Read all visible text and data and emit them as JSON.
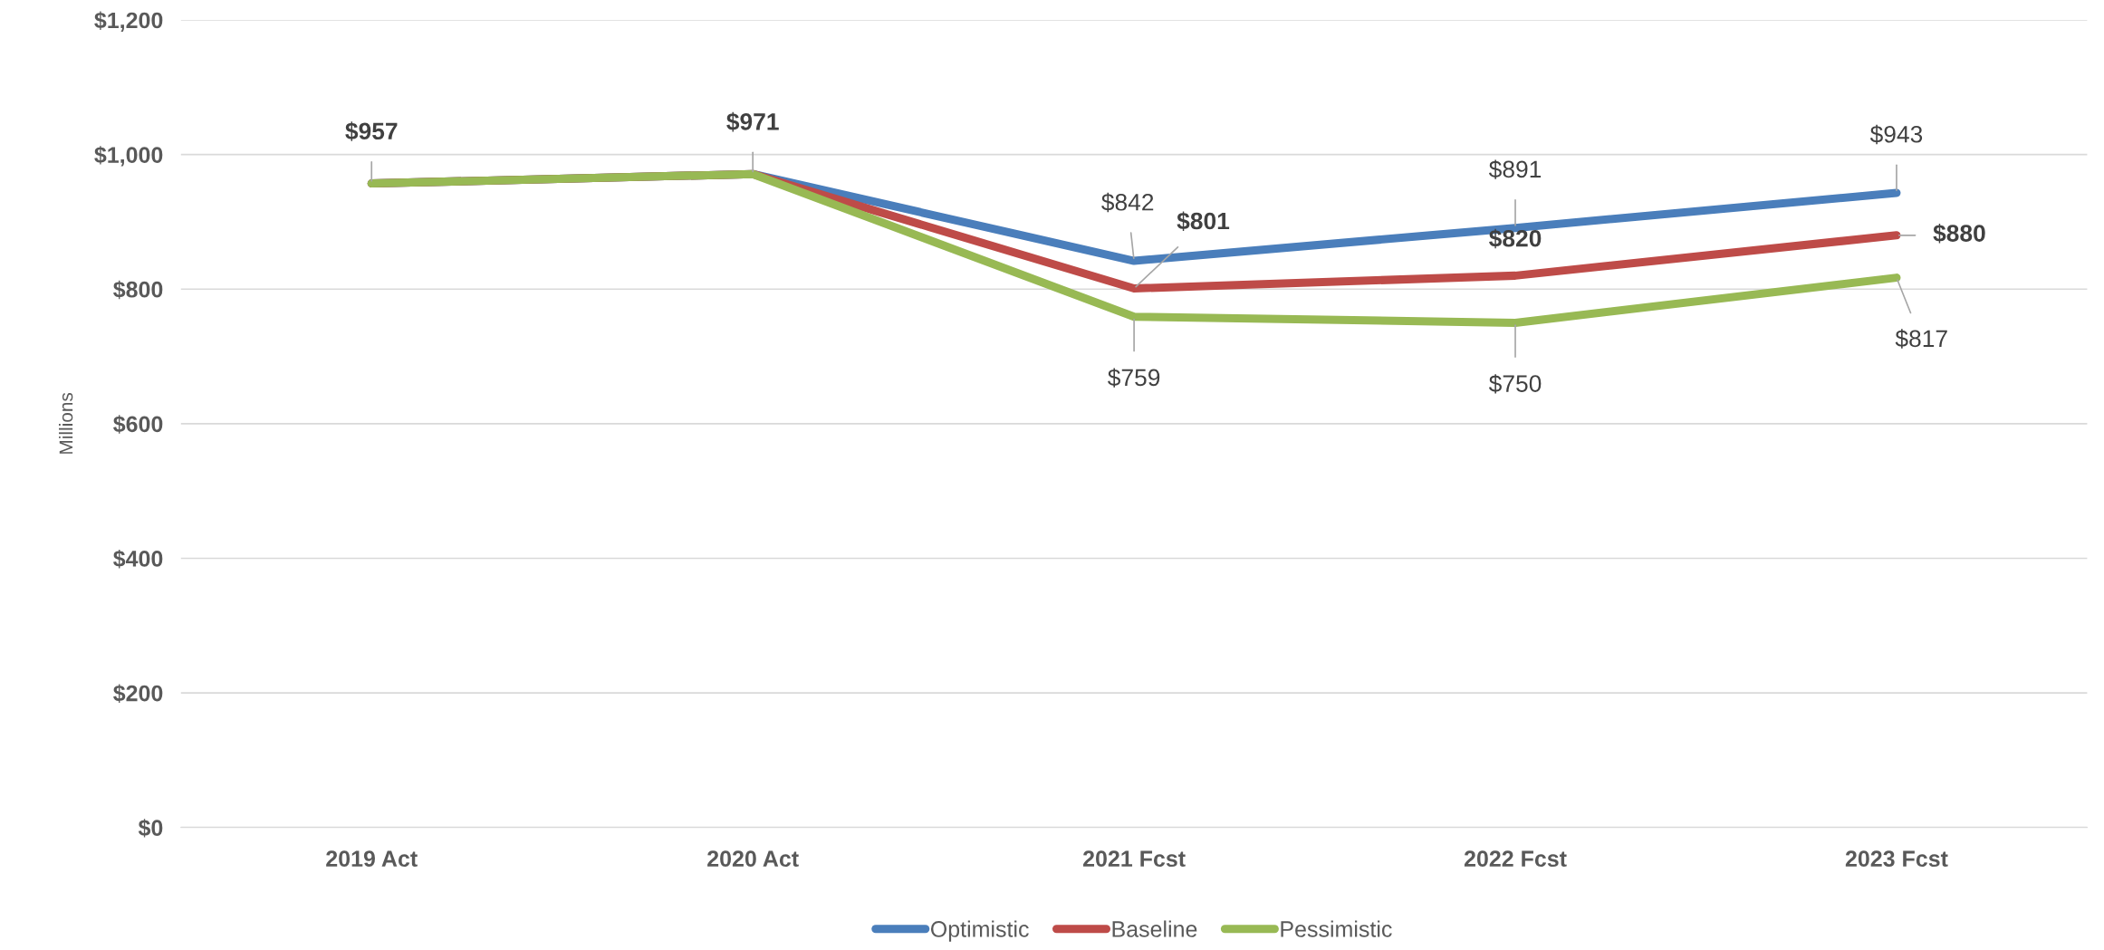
{
  "chart_data": {
    "type": "line",
    "ylabel": "Millions",
    "categories": [
      "2019 Act",
      "2020 Act",
      "2021 Fcst",
      "2022 Fcst",
      "2023 Fcst"
    ],
    "series": [
      {
        "name": "Optimistic",
        "color": "#4a7ebb",
        "values": [
          957,
          971,
          842,
          891,
          943
        ],
        "value_labels": [
          null,
          null,
          "$842",
          "$891",
          "$943"
        ]
      },
      {
        "name": "Baseline",
        "color": "#be4b48",
        "values": [
          957,
          971,
          801,
          820,
          880
        ],
        "value_labels": [
          "$957",
          "$971",
          "$801",
          "$820",
          "$880"
        ]
      },
      {
        "name": "Pessimistic",
        "color": "#98b954",
        "values": [
          957,
          971,
          759,
          750,
          817
        ],
        "value_labels": [
          null,
          null,
          "$759",
          "$750",
          "$817"
        ]
      }
    ],
    "ylim": [
      0,
      1200
    ],
    "yticks": [
      {
        "value": 0,
        "label": "$0"
      },
      {
        "value": 200,
        "label": "$200"
      },
      {
        "value": 400,
        "label": "$400"
      },
      {
        "value": 600,
        "label": "$600"
      },
      {
        "value": 800,
        "label": "$800"
      },
      {
        "value": 1000,
        "label": "$1,000"
      },
      {
        "value": 1200,
        "label": "$1,200"
      }
    ],
    "grid": "y",
    "legend": "bottom",
    "marker": "none",
    "line_style": "solid"
  }
}
